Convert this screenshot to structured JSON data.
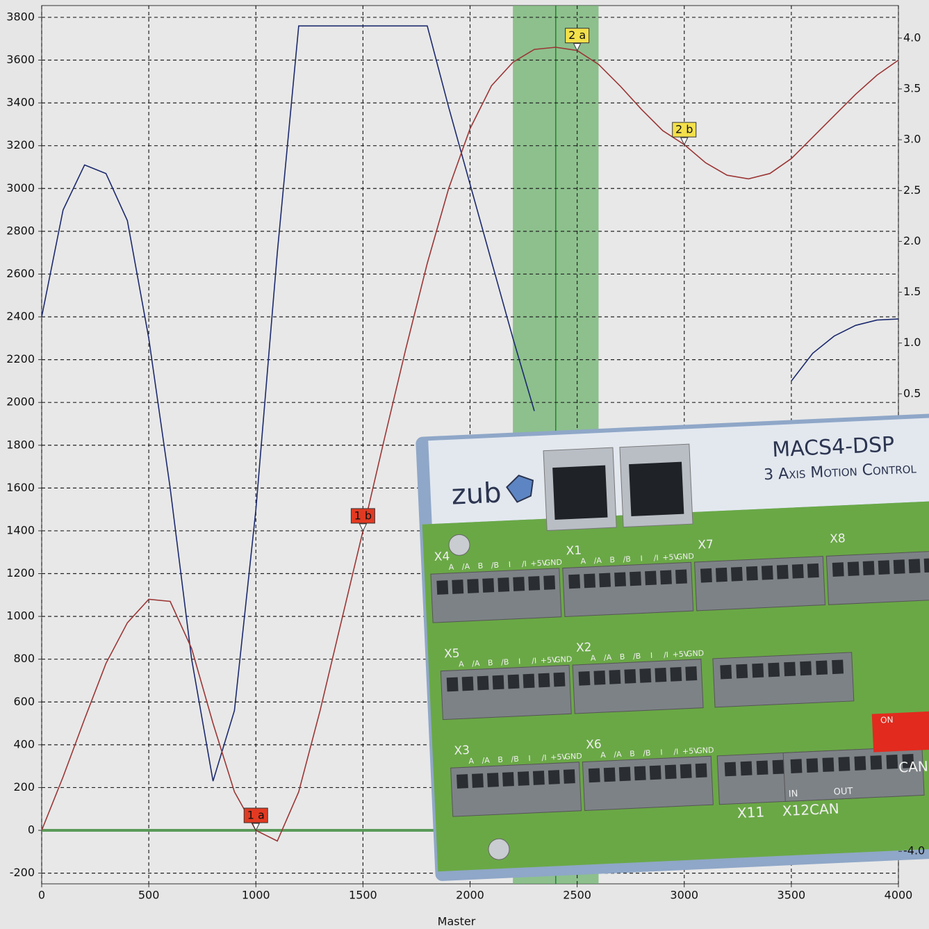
{
  "chart_data": {
    "type": "line",
    "x_label": "Master",
    "x": [
      0,
      100,
      200,
      300,
      400,
      500,
      600,
      700,
      800,
      900,
      1000,
      1100,
      1200,
      1300,
      1400,
      1500,
      1600,
      1700,
      1800,
      1900,
      2000,
      2100,
      2200,
      2300,
      2400,
      2500,
      2600,
      2700,
      2800,
      2900,
      3000,
      3100,
      3200,
      3300,
      3400,
      3500,
      3600,
      3700,
      3800,
      3900,
      4000
    ],
    "series": [
      {
        "color": "#1c2a6e",
        "values": [
          2400,
          2900,
          3110,
          3070,
          2850,
          2300,
          1600,
          800,
          230,
          560,
          1500,
          2700,
          3760,
          3760,
          3760,
          3760,
          3760,
          3760,
          3760,
          3380,
          3020,
          2660,
          2300,
          1960,
          null,
          null,
          null,
          null,
          null,
          null,
          null,
          null,
          null,
          null,
          null,
          2100,
          2230,
          2310,
          2360,
          2385,
          2390
        ]
      },
      {
        "color": "#9c3535",
        "values": [
          0,
          250,
          520,
          780,
          970,
          1080,
          1070,
          850,
          500,
          180,
          0,
          -50,
          180,
          560,
          980,
          1400,
          1830,
          2250,
          2650,
          3000,
          3280,
          3480,
          3590,
          3650,
          3660,
          3645,
          3580,
          3480,
          3370,
          3270,
          3205,
          3120,
          3062,
          3045,
          3070,
          3140,
          3240,
          3340,
          3440,
          3530,
          3600
        ]
      }
    ],
    "xlim": [
      0,
      4000
    ],
    "xticks": [
      0,
      500,
      1000,
      1500,
      2000,
      2500,
      3000,
      3500,
      4000
    ],
    "ylim": [
      -250,
      3855
    ],
    "yticks": [
      -200,
      0,
      200,
      400,
      600,
      800,
      1000,
      1200,
      1400,
      1600,
      1800,
      2000,
      2200,
      2400,
      2600,
      2800,
      3000,
      3200,
      3400,
      3600,
      3800
    ],
    "y2lim": [
      -4.32,
      4.32
    ],
    "y2ticks": [
      {
        "value": 4,
        "label": "4.0"
      },
      3.5,
      {
        "value": 3,
        "label": "3.0"
      },
      2.5,
      {
        "value": 2,
        "label": "2.0"
      },
      1.5,
      {
        "value": 1,
        "label": "1.0"
      },
      0.5,
      {
        "value": -4,
        "label": "-4.0"
      }
    ],
    "grid": true,
    "band": {
      "x0": 2200,
      "x1": 2600,
      "center": 2400,
      "color": "#6fb36f"
    },
    "baseline": {
      "y": 0,
      "color": "#5a9a5a"
    },
    "annotations": [
      {
        "label": "1 a",
        "x": 1000,
        "y": 0,
        "color": "#e23a22"
      },
      {
        "label": "1 b",
        "x": 1500,
        "y": 1400,
        "color": "#e23a22"
      },
      {
        "label": "2 a",
        "x": 2500,
        "y": 3645,
        "color": "#f3e04a"
      },
      {
        "label": "2 b",
        "x": 3000,
        "y": 3205,
        "color": "#f3e04a"
      }
    ]
  },
  "overlay": {
    "brand": "zub",
    "model": "MACS4-DSP",
    "subtitle": "3 Axis Motion Control",
    "connectors": [
      "X4",
      "X1",
      "X7",
      "X8",
      "X5",
      "X2",
      "X3",
      "X6"
    ],
    "pins": [
      "A",
      "/A",
      "B",
      "/B",
      "I",
      "/I",
      "+5V",
      "GND"
    ],
    "bottom": [
      "X11",
      "X12CAN",
      "CAN",
      "ON",
      "IN",
      "OUT"
    ]
  }
}
